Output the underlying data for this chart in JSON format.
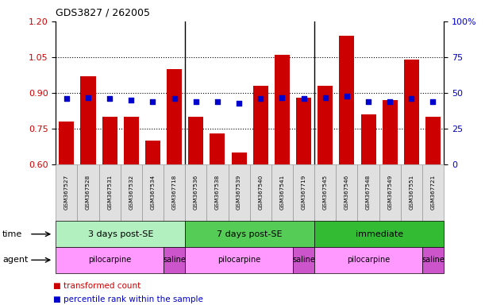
{
  "title": "GDS3827 / 262005",
  "samples": [
    "GSM367527",
    "GSM367528",
    "GSM367531",
    "GSM367532",
    "GSM367534",
    "GSM367718",
    "GSM367536",
    "GSM367538",
    "GSM367539",
    "GSM367540",
    "GSM367541",
    "GSM367719",
    "GSM367545",
    "GSM367546",
    "GSM367548",
    "GSM367549",
    "GSM367551",
    "GSM367721"
  ],
  "transformed_count": [
    0.78,
    0.97,
    0.8,
    0.8,
    0.7,
    1.0,
    0.8,
    0.73,
    0.65,
    0.93,
    1.06,
    0.88,
    0.93,
    1.14,
    0.81,
    0.87,
    1.04,
    0.8
  ],
  "percentile_rank": [
    46,
    47,
    46,
    45,
    44,
    46,
    44,
    44,
    43,
    46,
    47,
    46,
    47,
    48,
    44,
    44,
    46,
    44
  ],
  "ylim_left": [
    0.6,
    1.2
  ],
  "ylim_right": [
    0,
    100
  ],
  "yticks_left": [
    0.6,
    0.75,
    0.9,
    1.05,
    1.2
  ],
  "yticks_right": [
    0,
    25,
    50,
    75,
    100
  ],
  "bar_color": "#cc0000",
  "dot_color": "#0000cc",
  "time_groups": [
    {
      "label": "3 days post-SE",
      "start": 0,
      "end": 5,
      "color": "#b3f0c0"
    },
    {
      "label": "7 days post-SE",
      "start": 6,
      "end": 11,
      "color": "#55cc55"
    },
    {
      "label": "immediate",
      "start": 12,
      "end": 17,
      "color": "#33bb33"
    }
  ],
  "agent_groups": [
    {
      "label": "pilocarpine",
      "start": 0,
      "end": 4,
      "color": "#ff99ff"
    },
    {
      "label": "saline",
      "start": 5,
      "end": 5,
      "color": "#cc55cc"
    },
    {
      "label": "pilocarpine",
      "start": 6,
      "end": 10,
      "color": "#ff99ff"
    },
    {
      "label": "saline",
      "start": 11,
      "end": 11,
      "color": "#cc55cc"
    },
    {
      "label": "pilocarpine",
      "start": 12,
      "end": 16,
      "color": "#ff99ff"
    },
    {
      "label": "saline",
      "start": 17,
      "end": 17,
      "color": "#cc55cc"
    }
  ],
  "left_axis_color": "#cc0000",
  "right_axis_color": "#0000cc",
  "grid_lines": [
    0.75,
    0.9,
    1.05
  ],
  "group_seps": [
    5.5,
    11.5
  ],
  "sample_bg_color": "#e0e0e0",
  "sample_border_color": "#888888"
}
